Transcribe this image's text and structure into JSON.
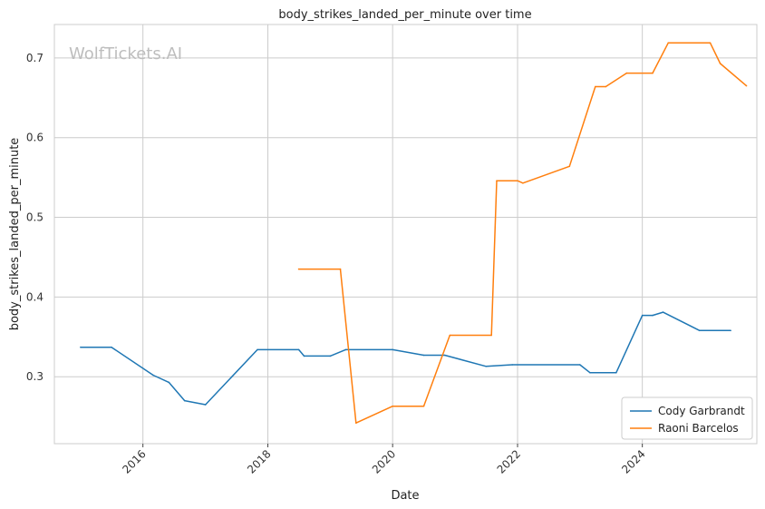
{
  "watermark": "WolfTickets.AI",
  "chart_data": {
    "type": "line",
    "title": "body_strikes_landed_per_minute over time",
    "xlabel": "Date",
    "ylabel": "body_strikes_landed_per_minute",
    "x_ticks": [
      "2016",
      "2018",
      "2020",
      "2022",
      "2024"
    ],
    "y_ticks": [
      "0.3",
      "0.4",
      "0.5",
      "0.6",
      "0.7"
    ],
    "xlim": [
      "2014-08-01",
      "2025-11-01"
    ],
    "ylim": [
      0.216,
      0.742
    ],
    "grid": true,
    "legend_position": "lower-right",
    "series": [
      {
        "name": "Cody Garbrandt",
        "color": "#1f77b4",
        "points": [
          [
            "2015-01-01",
            0.337
          ],
          [
            "2015-07-01",
            0.337
          ],
          [
            "2016-03-01",
            0.302
          ],
          [
            "2016-06-01",
            0.293
          ],
          [
            "2016-09-01",
            0.27
          ],
          [
            "2017-01-01",
            0.265
          ],
          [
            "2017-11-01",
            0.334
          ],
          [
            "2018-07-01",
            0.334
          ],
          [
            "2018-08-01",
            0.326
          ],
          [
            "2019-01-01",
            0.326
          ],
          [
            "2019-04-01",
            0.334
          ],
          [
            "2020-01-01",
            0.334
          ],
          [
            "2020-07-01",
            0.327
          ],
          [
            "2020-11-01",
            0.327
          ],
          [
            "2021-07-01",
            0.313
          ],
          [
            "2021-12-01",
            0.315
          ],
          [
            "2023-01-01",
            0.315
          ],
          [
            "2023-03-01",
            0.305
          ],
          [
            "2023-08-01",
            0.305
          ],
          [
            "2024-01-01",
            0.377
          ],
          [
            "2024-03-01",
            0.377
          ],
          [
            "2024-05-01",
            0.381
          ],
          [
            "2024-12-01",
            0.358
          ],
          [
            "2025-06-01",
            0.358
          ]
        ]
      },
      {
        "name": "Raoni Barcelos",
        "color": "#ff7f0e",
        "points": [
          [
            "2018-07-01",
            0.435
          ],
          [
            "2019-03-01",
            0.435
          ],
          [
            "2019-06-01",
            0.242
          ],
          [
            "2020-01-01",
            0.263
          ],
          [
            "2020-07-01",
            0.263
          ],
          [
            "2020-12-01",
            0.352
          ],
          [
            "2021-08-01",
            0.352
          ],
          [
            "2021-09-01",
            0.546
          ],
          [
            "2022-01-01",
            0.546
          ],
          [
            "2022-02-01",
            0.543
          ],
          [
            "2022-11-01",
            0.564
          ],
          [
            "2023-04-01",
            0.664
          ],
          [
            "2023-06-01",
            0.664
          ],
          [
            "2023-10-01",
            0.681
          ],
          [
            "2024-03-01",
            0.681
          ],
          [
            "2024-06-01",
            0.719
          ],
          [
            "2025-02-01",
            0.719
          ],
          [
            "2025-04-01",
            0.693
          ],
          [
            "2025-09-01",
            0.665
          ]
        ]
      }
    ]
  }
}
